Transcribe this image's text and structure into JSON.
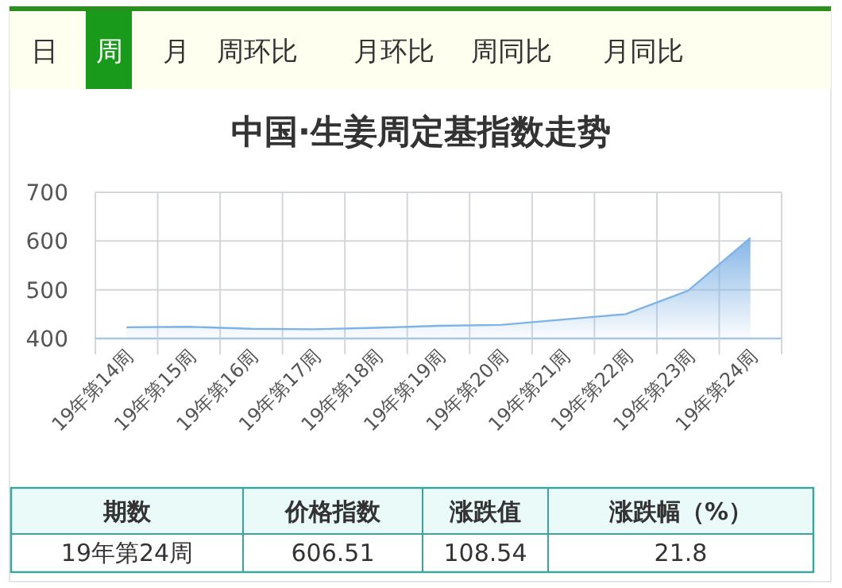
{
  "chart_data": {
    "type": "area",
    "title": "中国·生姜周定基指数走势",
    "categories": [
      "19年第14周",
      "19年第15周",
      "19年第16周",
      "19年第17周",
      "19年第18周",
      "19年第19周",
      "19年第20周",
      "19年第21周",
      "19年第22周",
      "19年第23周",
      "19年第24周"
    ],
    "series": [
      {
        "color": "#7fb2e5",
        "values": [
          423,
          424,
          420,
          419,
          422,
          426,
          428,
          439,
          450,
          498,
          606.51
        ]
      }
    ],
    "ylim": [
      400,
      700
    ],
    "yticks": [
      400,
      500,
      600,
      700
    ],
    "grid": true,
    "annotations": [
      "日",
      "周",
      "月",
      "周环比",
      "月环比",
      "周同比",
      "月同比",
      "期数",
      "价格指数",
      "涨跌值",
      "涨跌幅（%）",
      "19年第24周",
      "606.51",
      "108.54",
      "21.8"
    ]
  }
}
